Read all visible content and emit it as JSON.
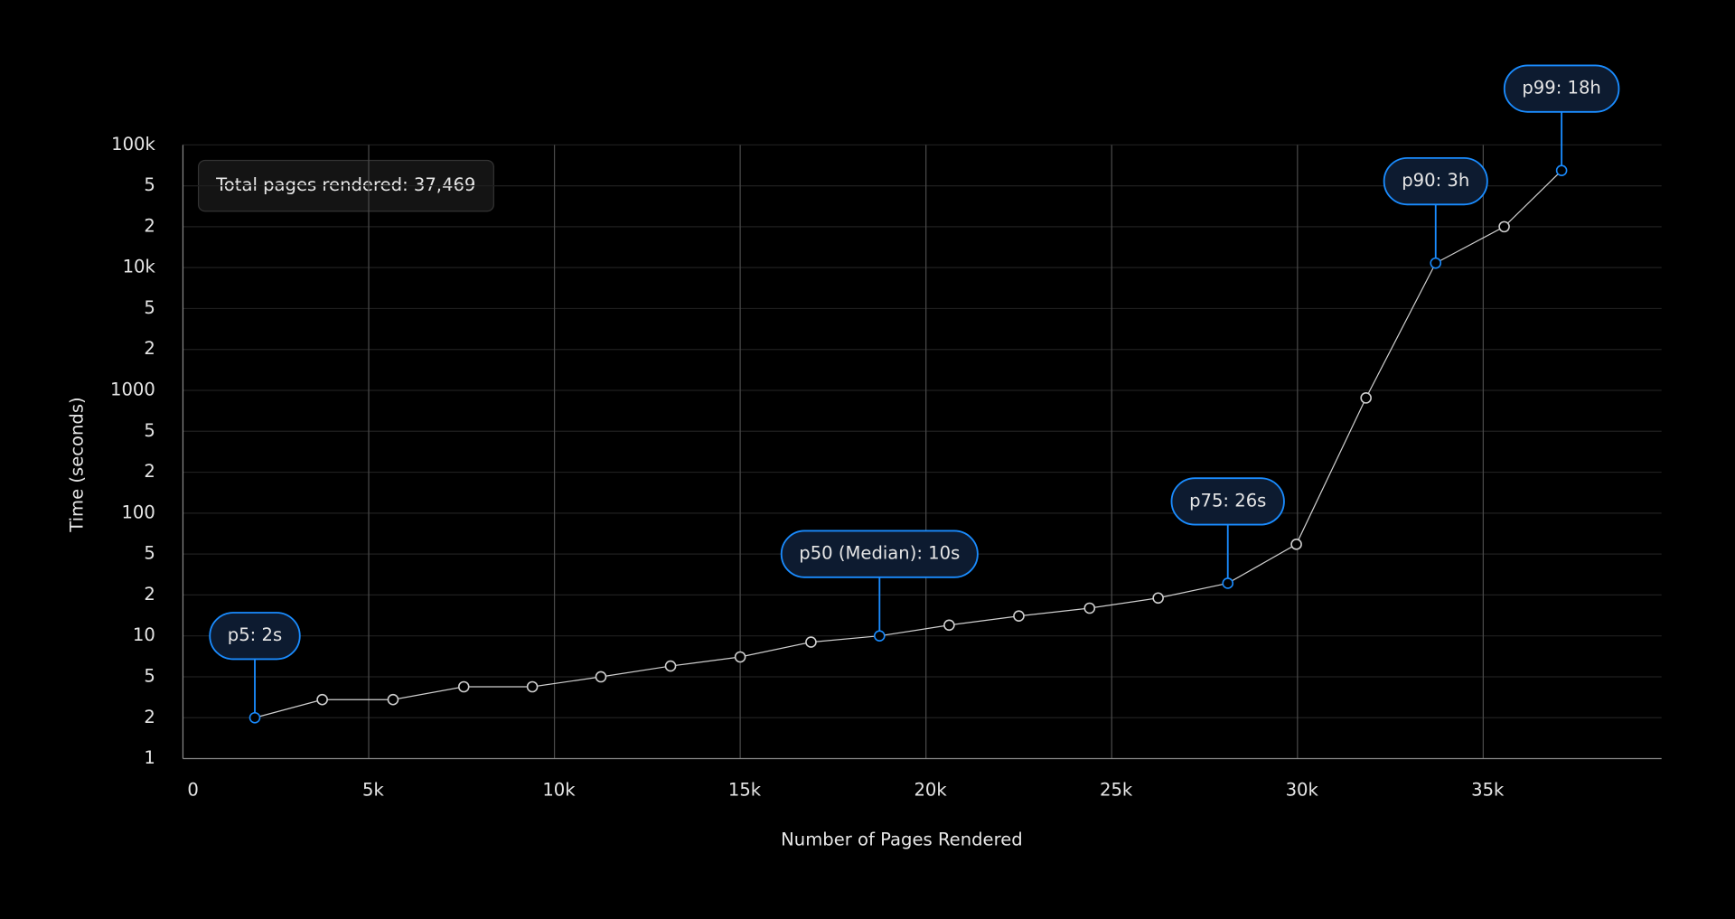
{
  "chart_data": {
    "type": "line",
    "annotation": "Total pages rendered: 37,469",
    "x_label": "Number of Pages Rendered",
    "y_label": "Time (seconds)",
    "xlim": [
      0,
      39800
    ],
    "xticks": [
      0,
      {
        "value": 5000,
        "label": "5k"
      },
      {
        "value": 10000,
        "label": "10k"
      },
      {
        "value": 15000,
        "label": "15k"
      },
      {
        "value": 20000,
        "label": "20k"
      },
      {
        "value": 25000,
        "label": "25k"
      },
      {
        "value": 30000,
        "label": "30k"
      },
      {
        "value": 35000,
        "label": "35k"
      }
    ],
    "ylim": [
      1,
      100000
    ],
    "yticks": [
      1,
      2,
      5,
      10,
      {
        "value": 20,
        "label": "2"
      },
      {
        "value": 50,
        "label": "5"
      },
      100,
      {
        "value": 200,
        "label": "2"
      },
      {
        "value": 500,
        "label": "5"
      },
      1000,
      {
        "value": 2000,
        "label": "2"
      },
      {
        "value": 5000,
        "label": "5"
      },
      {
        "value": 10000,
        "label": "10k"
      },
      {
        "value": 20000,
        "label": "2"
      },
      {
        "value": 50000,
        "label": "5"
      },
      {
        "value": 100000,
        "label": "100k"
      }
    ],
    "log_scale": true,
    "grid": true,
    "series": [
      {
        "color": "#cfcfcf",
        "highlight_color": "#1a8cff",
        "x": [
          1935,
          3750,
          5655,
          7560,
          9405,
          11250,
          13125,
          15000,
          16905,
          18750,
          20625,
          22500,
          24405,
          26250,
          28125,
          29970,
          31845,
          33720,
          35565,
          37110
        ],
        "values": [
          2,
          3,
          3,
          4,
          4,
          5,
          6,
          7,
          9,
          10,
          12,
          14,
          16,
          19,
          26,
          59,
          880,
          10800,
          20000,
          64800
        ],
        "value_labels": [
          "p5: 2s",
          null,
          null,
          null,
          null,
          null,
          null,
          null,
          null,
          "p50 (Median): 10s",
          null,
          null,
          null,
          null,
          "p75: 26s",
          null,
          null,
          "p90: 3h",
          null,
          "p99: 18h"
        ]
      }
    ]
  }
}
